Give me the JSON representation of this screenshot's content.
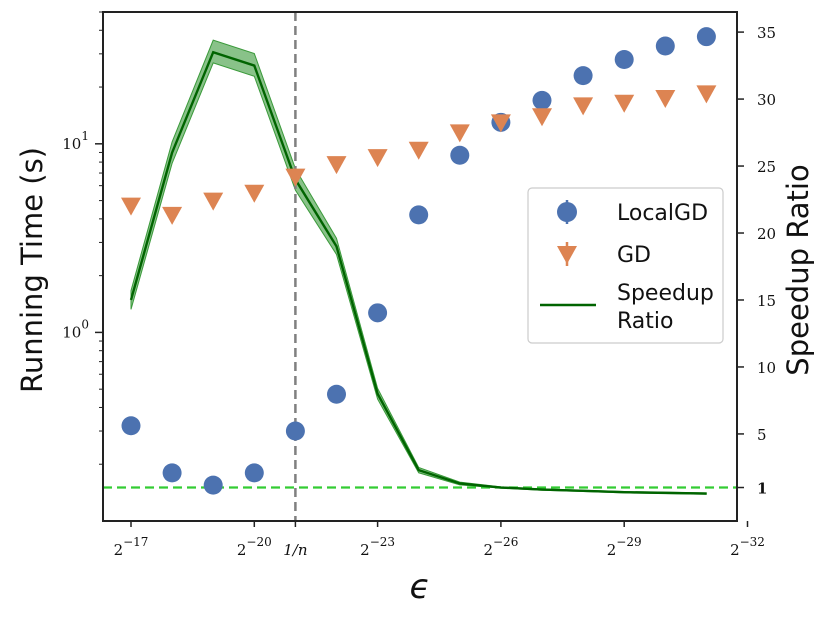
{
  "chart_data": {
    "type": "scatter",
    "title": "",
    "xlabel": "ϵ",
    "ylabel": "Running Time (s)",
    "y2label": "Speedup Ratio",
    "x_ticks": [
      {
        "exp": -17,
        "label": "2",
        "sup": "−17"
      },
      {
        "exp": -20,
        "label": "2",
        "sup": "−20"
      },
      {
        "exp": -21,
        "label": "1/n",
        "sup": ""
      },
      {
        "exp": -23,
        "label": "2",
        "sup": "−23"
      },
      {
        "exp": -26,
        "label": "2",
        "sup": "−26"
      },
      {
        "exp": -29,
        "label": "2",
        "sup": "−29"
      },
      {
        "exp": -32,
        "label": "2",
        "sup": "−32"
      }
    ],
    "y_ticks": [
      {
        "value": 1,
        "label": "10",
        "sup": "0"
      },
      {
        "value": 10,
        "label": "10",
        "sup": "1"
      }
    ],
    "y_scale": "log",
    "ylim": [
      0.1,
      50
    ],
    "y2_ticks": [
      1,
      5,
      10,
      15,
      20,
      25,
      30,
      35
    ],
    "y2lim": [
      -1.5,
      36.5
    ],
    "vline": {
      "x_exp": -21,
      "label": "1/n"
    },
    "hline": {
      "y2": 1
    },
    "series": [
      {
        "name": "LocalGD",
        "kind": "scatter-circle",
        "color": "#4c72b0",
        "x_exp": [
          -17,
          -18,
          -19,
          -20,
          -21,
          -22,
          -23,
          -24,
          -25,
          -26,
          -27,
          -28,
          -29,
          -30,
          -31
        ],
        "values": [
          0.32,
          0.18,
          0.155,
          0.18,
          0.3,
          0.47,
          1.27,
          4.2,
          8.7,
          13,
          17,
          23,
          28,
          33,
          37
        ]
      },
      {
        "name": "GD",
        "kind": "scatter-triangle",
        "color": "#dd8452",
        "x_exp": [
          -17,
          -18,
          -19,
          -20,
          -21,
          -22,
          -23,
          -24,
          -25,
          -26,
          -27,
          -28,
          -29,
          -30,
          -31
        ],
        "values": [
          4.7,
          4.2,
          5.0,
          5.5,
          6.7,
          7.8,
          8.5,
          9.3,
          11.5,
          13,
          14,
          16,
          16.5,
          17.5,
          18.5
        ]
      },
      {
        "name": "Speedup\nRatio",
        "kind": "line-band",
        "axis": "y2",
        "color": "#006400",
        "band_color": "#3a9a3a",
        "x_exp": [
          -17,
          -18,
          -19,
          -20,
          -21,
          -22,
          -23,
          -24,
          -25,
          -26,
          -27,
          -28,
          -29,
          -30,
          -31
        ],
        "values": [
          15,
          26,
          33.5,
          32.5,
          24,
          19,
          8,
          2.3,
          1.3,
          1.0,
          0.85,
          0.75,
          0.65,
          0.6,
          0.55
        ],
        "lower": [
          14.3,
          25.2,
          32.7,
          31.7,
          23.2,
          18.4,
          7.6,
          2.1,
          1.2,
          0.95,
          0.8,
          0.7,
          0.6,
          0.55,
          0.5
        ],
        "upper": [
          15.7,
          26.8,
          34.4,
          33.4,
          24.8,
          19.6,
          8.4,
          2.5,
          1.4,
          1.05,
          0.9,
          0.8,
          0.7,
          0.65,
          0.6
        ]
      }
    ],
    "legend": {
      "placement": "center-right",
      "entries": [
        "LocalGD",
        "GD",
        "Speedup",
        "Ratio"
      ]
    },
    "colors": {
      "vline": "#808080",
      "hline": "#33cc33"
    }
  }
}
